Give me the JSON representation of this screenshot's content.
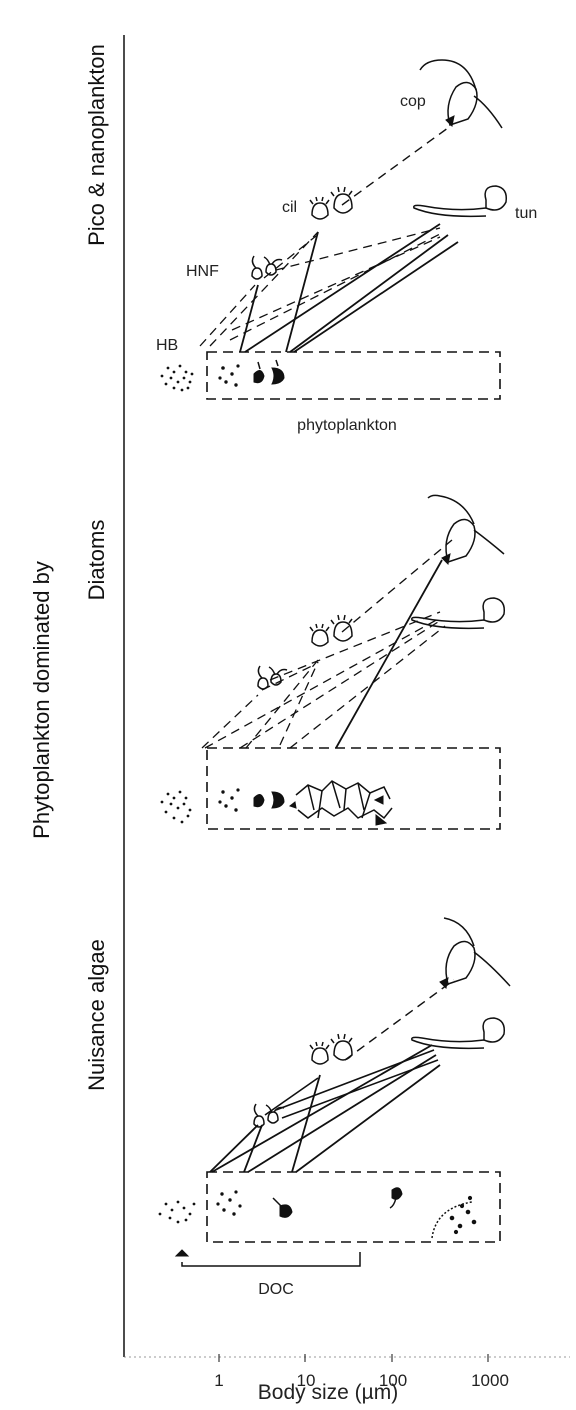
{
  "figure": {
    "y_title": "Phytoplankton dominated by",
    "x_title": "Body size (µm)",
    "x_ticks": [
      "1",
      "10",
      "100",
      "1000"
    ]
  },
  "panels": [
    {
      "title": "Pico & nanoplankton",
      "labels": {
        "cop": "cop",
        "tun": "tun",
        "cil": "cil",
        "hnf": "HNF",
        "hb": "HB",
        "phyto": "phytoplankton"
      }
    },
    {
      "title": "Diatoms"
    },
    {
      "title": "Nuisance algae",
      "labels": {
        "doc": "DOC"
      }
    }
  ]
}
